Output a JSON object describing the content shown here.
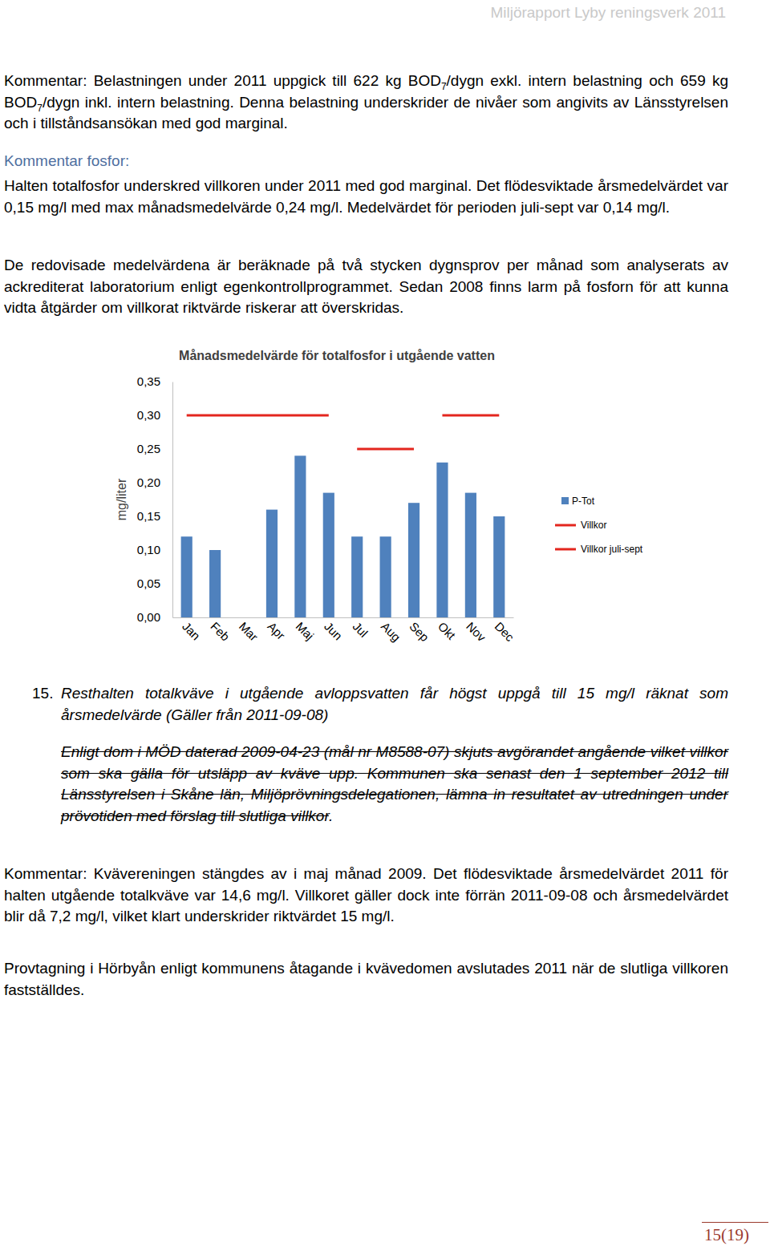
{
  "header": "Miljörapport Lyby reningsverk 2011",
  "intro": [
    {
      "text": "Kommentar: Belastningen under 2011 uppgick till 622 kg BOD"
    },
    {
      "sub": "7"
    },
    {
      "text": "/dygn exkl. intern belastning och 659 kg BOD"
    },
    {
      "sub": "7"
    },
    {
      "text": "/dygn inkl. intern belastning. Denna belastning underskrider de nivåer som angivits av Länsstyrelsen och i tillståndsansökan med god marginal."
    }
  ],
  "fosfor_heading": "Kommentar fosfor:",
  "fosfor_text": "Halten totalfosfor underskred villkoren under 2011 med god marginal. Det flödesviktade årsmedelvärdet var 0,15 mg/l med max månadsmedelvärde 0,24 mg/l. Medelvärdet för perioden juli-sept var 0,14 mg/l.",
  "method_text": "De redovisade medelvärdena är beräknade på två stycken dygnsprov per månad som analyserats av ackrediterat laboratorium enligt egenkontrollprogrammet. Sedan 2008 finns larm på fosforn för att kunna vidta åtgärder om villkorat riktvärde riskerar att överskridas.",
  "chart_data": {
    "type": "bar",
    "title": "Månadsmedelvärde för totalfosfor i utgående vatten",
    "y_label": "mg/liter",
    "categories": [
      "Jan",
      "Feb",
      "Mar",
      "Apr",
      "Maj",
      "Jun",
      "Jul",
      "Aug",
      "Sep",
      "Okt",
      "Nov",
      "Dec"
    ],
    "series": [
      {
        "name": "P-Tot",
        "type": "bar",
        "color": "#4f81bd",
        "values": [
          0.12,
          0.1,
          null,
          0.16,
          0.24,
          0.185,
          0.12,
          0.12,
          0.17,
          0.23,
          0.185,
          0.15
        ]
      },
      {
        "name": "Villkor",
        "type": "line",
        "color": "#e3261e",
        "values": [
          0.3,
          0.3,
          0.3,
          0.3,
          0.3,
          0.3,
          null,
          null,
          null,
          0.3,
          0.3,
          0.3
        ]
      },
      {
        "name": "Villkor juli-sept",
        "type": "line",
        "color": "#e3261e",
        "values": [
          null,
          null,
          null,
          null,
          null,
          null,
          0.25,
          0.25,
          0.25,
          null,
          null,
          null
        ]
      }
    ],
    "ylim": [
      0,
      0.35
    ],
    "yticks": [
      {
        "value": 0,
        "label": "0,00"
      },
      {
        "value": 0.05,
        "label": "0,05"
      },
      {
        "value": 0.1,
        "label": "0,10"
      },
      {
        "value": 0.15,
        "label": "0,15"
      },
      {
        "value": 0.2,
        "label": "0,20"
      },
      {
        "value": 0.25,
        "label": "0,25"
      },
      {
        "value": 0.3,
        "label": "0,30"
      },
      {
        "value": 0.35,
        "label": "0,35"
      }
    ],
    "grid": false,
    "legend": "right"
  },
  "condition": {
    "number": "15.",
    "text": "Resthalten totalkväve i utgående avloppsvatten får högst uppgå till 15 mg/l räknat som årsmedelvärde (Gäller från 2011-09-08)"
  },
  "struck_text": {
    "struck": "Enligt dom i MÖD daterad 2009-04-23 (mål nr M8588-07) skjuts avgörandet angående vilket villkor som ska gälla för utsläpp av kväve upp. Kommunen ska senast den 1 september 2012 till Länsstyrelsen i Skåne län, Miljöprövningsdelegationen, lämna in resultatet av utredningen under prövotiden med förslag till slutliga villkor",
    "tail": "."
  },
  "comment_kvave": "Kommentar: Kvävereningen stängdes av i maj månad 2009. Det flödesviktade årsmedelvärdet 2011 för halten utgående totalkväve var 14,6 mg/l. Villkoret gäller dock inte förrän 2011-09-08 och årsmedelvärdet blir då 7,2 mg/l, vilket klart underskrider riktvärdet 15 mg/l.",
  "closing": "Provtagning i Hörbyån enligt kommunens åtagande i kvävedomen avslutades 2011 när de slutliga villkoren fastställdes.",
  "page_number": "15(19)"
}
